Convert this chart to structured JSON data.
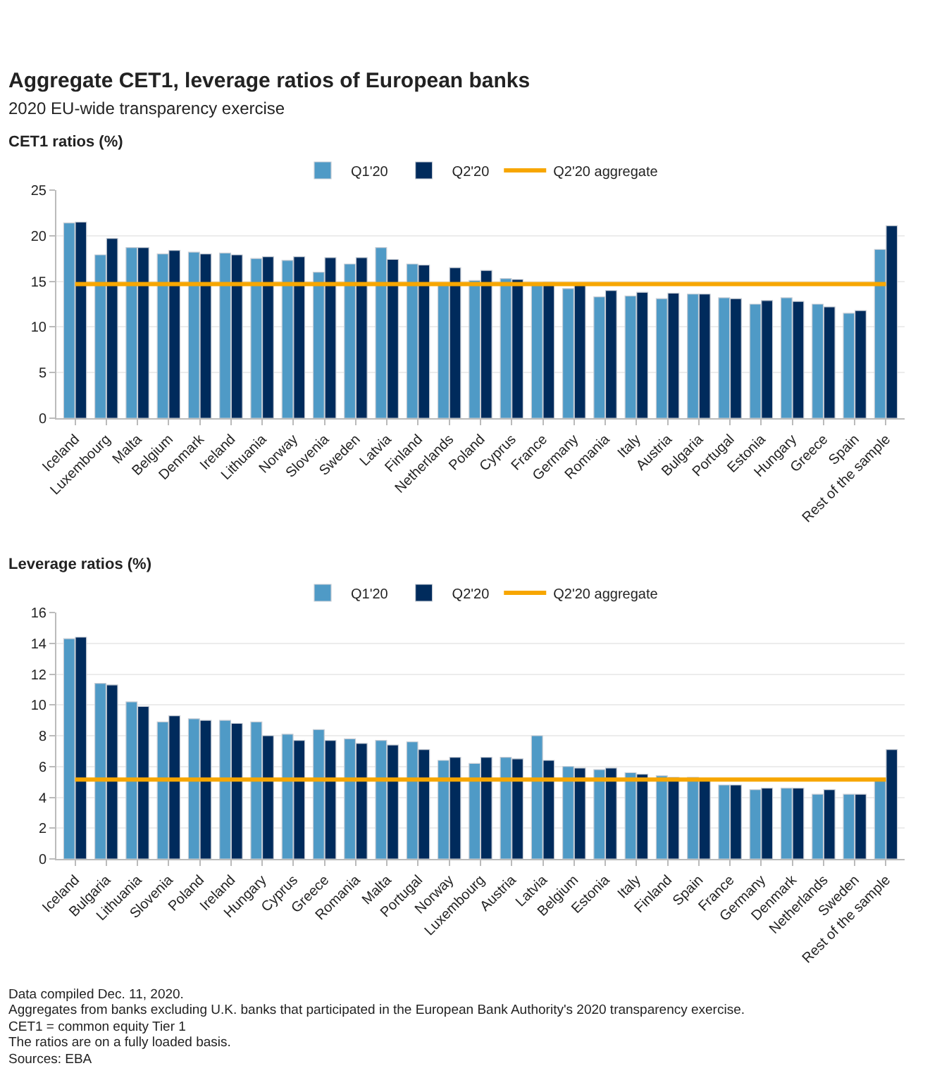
{
  "chart_data": [
    {
      "type": "bar",
      "title": "Aggregate CET1, leverage ratios of European banks",
      "subtitle": "2020 EU-wide transparency exercise",
      "ylabel": "CET1 ratios (%)",
      "categories": [
        "Iceland",
        "Luxembourg",
        "Malta",
        "Belgium",
        "Denmark",
        "Ireland",
        "Lithuania",
        "Norway",
        "Slovenia",
        "Sweden",
        "Latvia",
        "Finland",
        "Netherlands",
        "Poland",
        "Cyprus",
        "France",
        "Germany",
        "Romania",
        "Italy",
        "Austria",
        "Bulgaria",
        "Portugal",
        "Estonia",
        "Hungary",
        "Greece",
        "Spain",
        "Rest of the sample"
      ],
      "series": [
        {
          "name": "Q1'20",
          "color": "#4f9ac6",
          "values": [
            21.4,
            17.9,
            18.7,
            18.0,
            18.2,
            18.1,
            17.5,
            17.3,
            16.0,
            16.9,
            18.7,
            16.9,
            14.8,
            15.1,
            15.3,
            14.8,
            14.2,
            13.3,
            13.4,
            13.1,
            13.6,
            13.2,
            12.5,
            13.2,
            12.5,
            11.5,
            18.5
          ]
        },
        {
          "name": "Q2'20",
          "color": "#002b5c",
          "values": [
            21.5,
            19.7,
            18.7,
            18.4,
            18.0,
            17.9,
            17.7,
            17.7,
            17.6,
            17.6,
            17.4,
            16.8,
            16.5,
            16.2,
            15.2,
            14.9,
            14.6,
            14.0,
            13.8,
            13.7,
            13.6,
            13.1,
            12.9,
            12.8,
            12.2,
            11.8,
            21.1
          ]
        }
      ],
      "ref_lines": [
        {
          "axis": "y",
          "value": 14.7,
          "label": "Q2'20 aggregate",
          "color": "#f7a600"
        }
      ],
      "ylim": [
        0,
        25
      ],
      "yticks": [
        0,
        5,
        10,
        15,
        20,
        25
      ],
      "grid": "y",
      "legend": "top"
    },
    {
      "type": "bar",
      "ylabel": "Leverage ratios (%)",
      "categories": [
        "Iceland",
        "Bulgaria",
        "Lithuania",
        "Slovenia",
        "Poland",
        "Ireland",
        "Hungary",
        "Cyprus",
        "Greece",
        "Romania",
        "Malta",
        "Portugal",
        "Norway",
        "Luxembourg",
        "Austria",
        "Latvia",
        "Belgium",
        "Estonia",
        "Italy",
        "Finland",
        "Spain",
        "France",
        "Germany",
        "Denmark",
        "Netherlands",
        "Sweden",
        "Rest of the sample"
      ],
      "series": [
        {
          "name": "Q1'20",
          "color": "#4f9ac6",
          "values": [
            14.3,
            11.4,
            10.2,
            8.9,
            9.1,
            9.0,
            8.9,
            8.1,
            8.4,
            7.8,
            7.7,
            7.6,
            6.4,
            6.2,
            6.6,
            8.0,
            6.0,
            5.8,
            5.6,
            5.4,
            5.3,
            4.8,
            4.5,
            4.6,
            4.2,
            4.2,
            5.1
          ]
        },
        {
          "name": "Q2'20",
          "color": "#002b5c",
          "values": [
            14.4,
            11.3,
            9.9,
            9.3,
            9.0,
            8.8,
            8.0,
            7.7,
            7.7,
            7.5,
            7.4,
            7.1,
            6.6,
            6.6,
            6.5,
            6.4,
            5.9,
            5.9,
            5.5,
            5.3,
            5.1,
            4.8,
            4.6,
            4.6,
            4.5,
            4.2,
            7.1
          ]
        }
      ],
      "ref_lines": [
        {
          "axis": "y",
          "value": 5.15,
          "label": "Q2'20 aggregate",
          "color": "#f7a600"
        }
      ],
      "ylim": [
        0,
        16
      ],
      "yticks": [
        0,
        2,
        4,
        6,
        8,
        10,
        12,
        14,
        16
      ],
      "grid": "y",
      "legend": "top",
      "annotations": [
        "Data compiled Dec. 11, 2020.",
        "Aggregates from banks excluding U.K. banks that participated in the European Bank Authority's 2020 transparency exercise.",
        "CET1 = common equity Tier 1",
        "The ratios are on a fully loaded basis.",
        "Sources: EBA"
      ]
    }
  ]
}
